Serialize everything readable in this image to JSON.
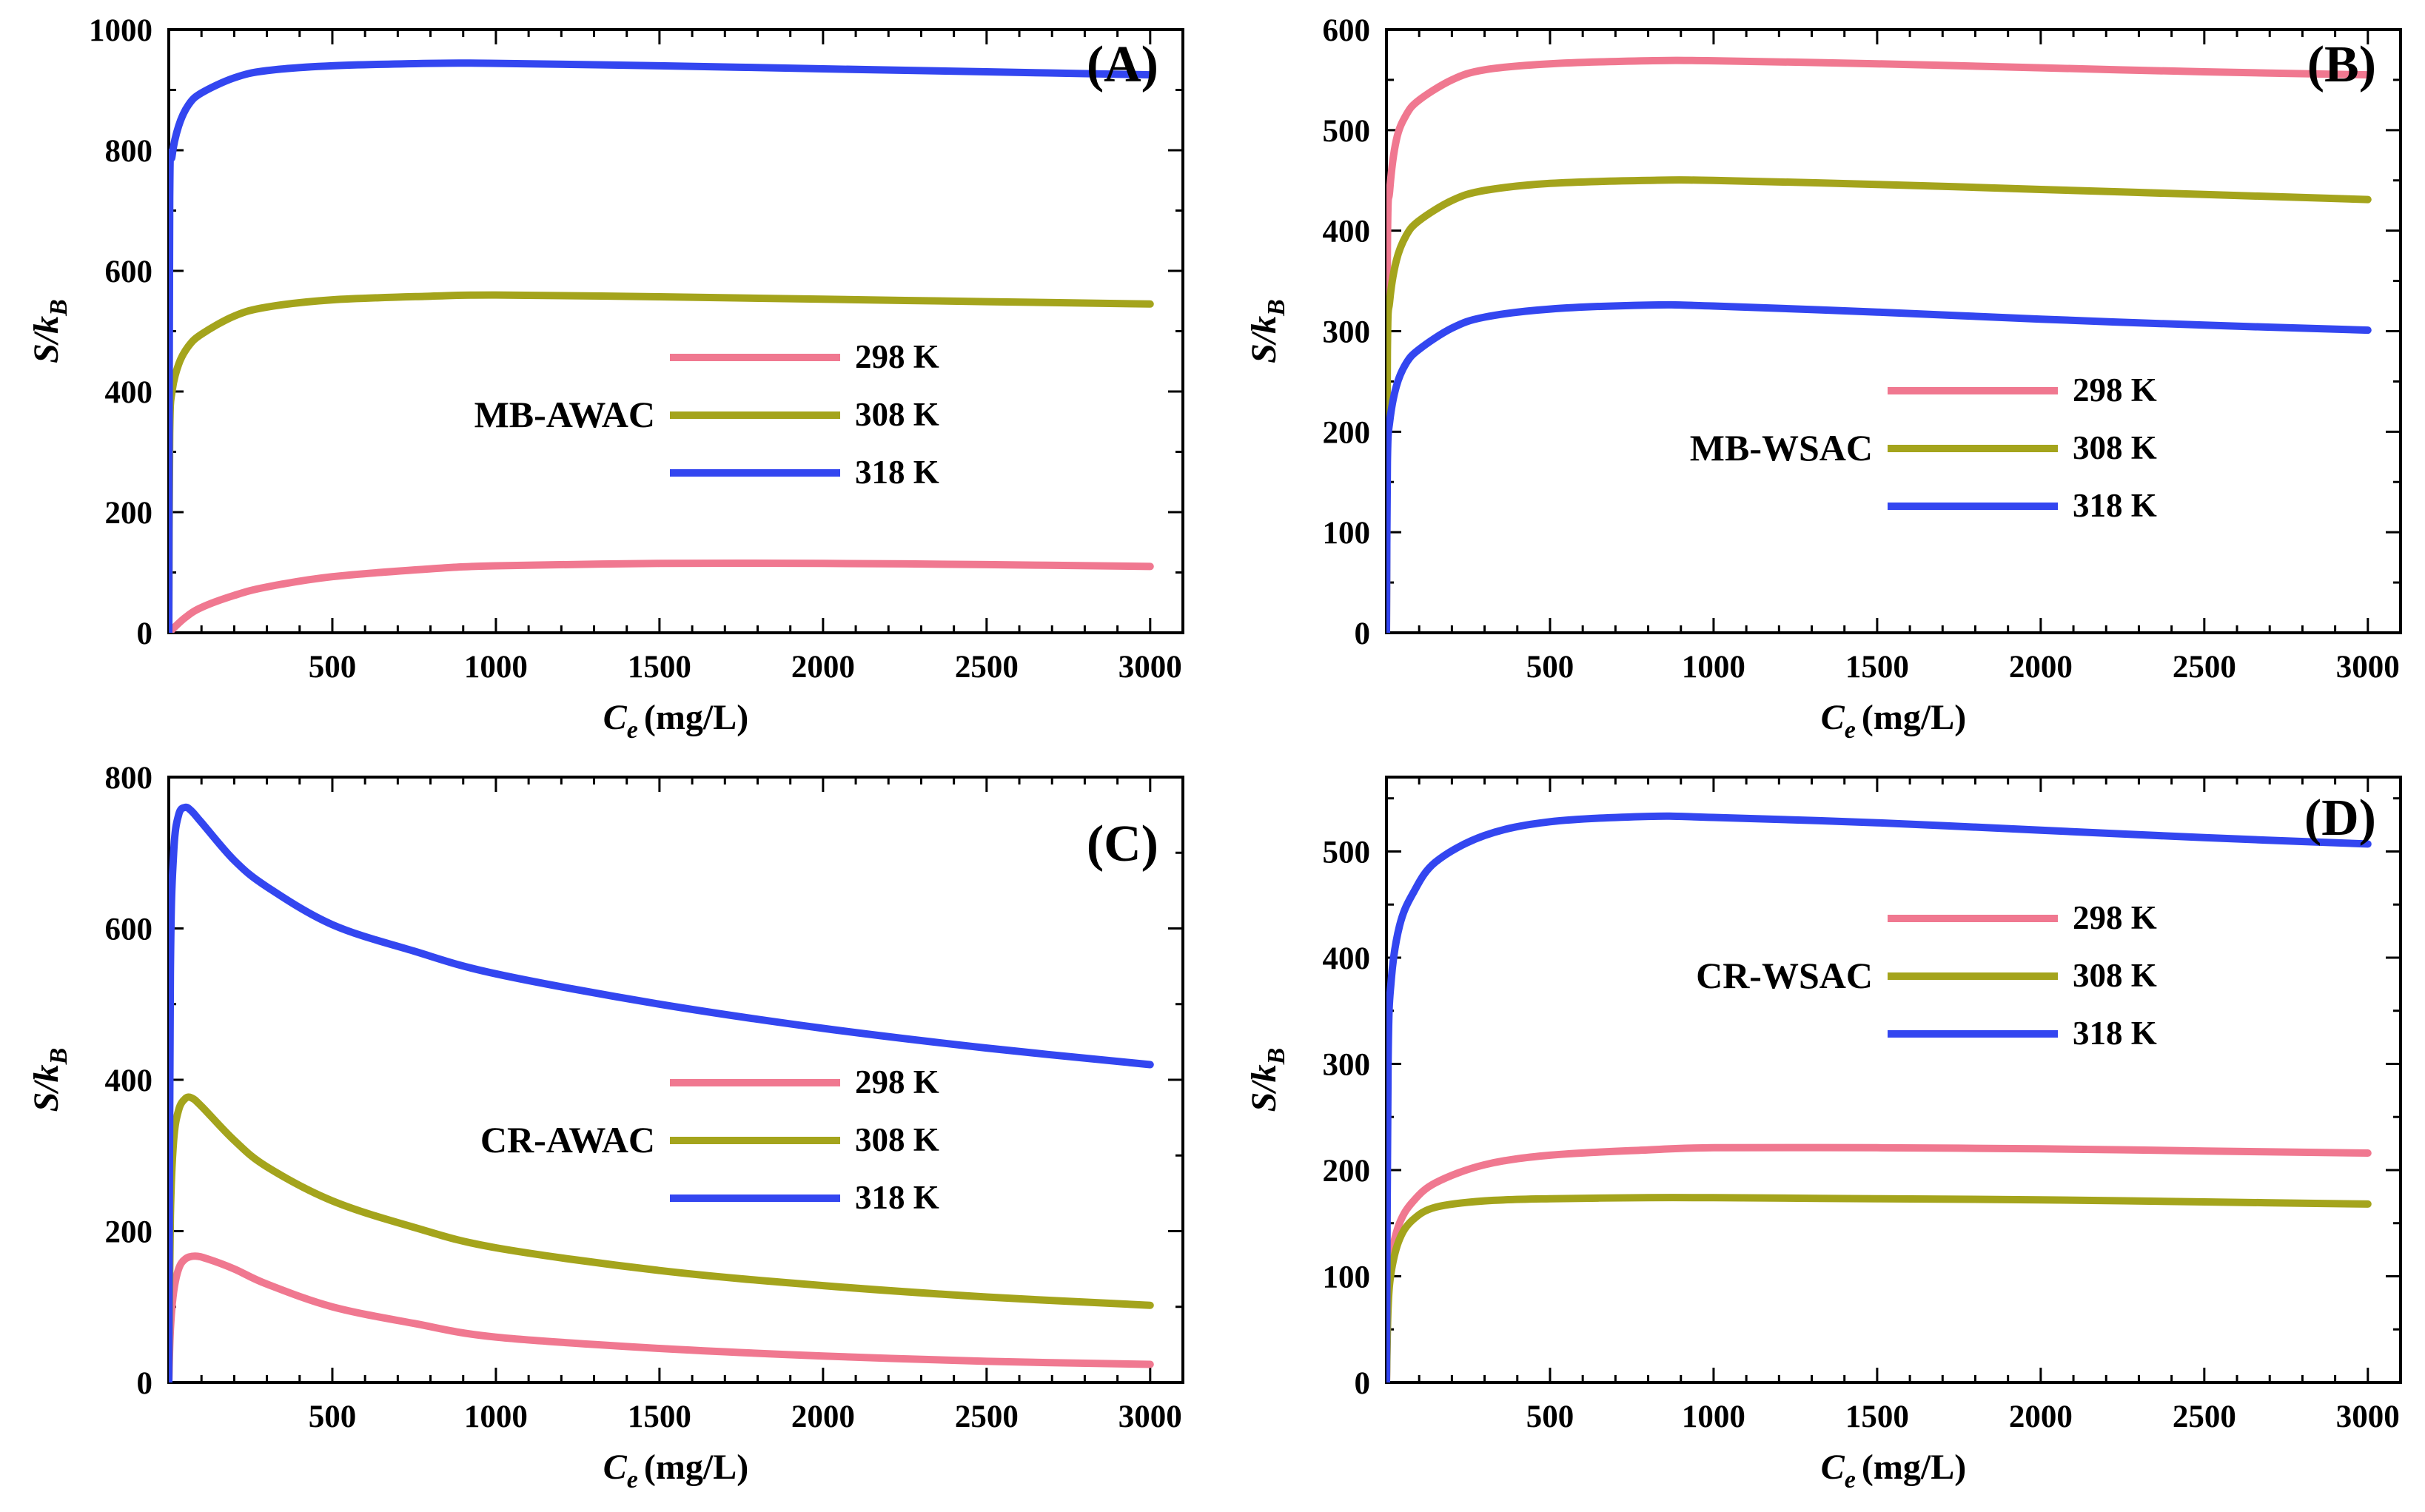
{
  "figure": {
    "x_axis_label": "C",
    "x_axis_subscript": "e",
    "x_axis_unit": "(mg/L)",
    "y_axis_label": "S/k",
    "y_axis_subscript": "B"
  },
  "chart_data": [
    {
      "panel": "(A)",
      "type": "line",
      "sample": "MB-AWAC",
      "xlabel": "Ce (mg/L)",
      "ylabel": "S/kB",
      "xlim": [
        0,
        3100
      ],
      "ylim": [
        0,
        1000
      ],
      "xticks": [
        500,
        1000,
        1500,
        2000,
        2500,
        3000
      ],
      "yticks": [
        0,
        200,
        400,
        600,
        800,
        1000
      ],
      "legend": [
        "298 K",
        "308 K",
        "318  K"
      ],
      "series": [
        {
          "name": "298 K",
          "color": "#f07890",
          "points": [
            [
              0,
              0
            ],
            [
              50,
              25
            ],
            [
              100,
              42
            ],
            [
              200,
              62
            ],
            [
              300,
              76
            ],
            [
              500,
              93
            ],
            [
              800,
              106
            ],
            [
              1000,
              111
            ],
            [
              1500,
              115
            ],
            [
              2000,
              115
            ],
            [
              2500,
              113
            ],
            [
              3000,
              110
            ]
          ]
        },
        {
          "name": "308 K",
          "color": "#a4a41c",
          "points": [
            [
              0,
              0
            ],
            [
              3,
              330
            ],
            [
              10,
              400
            ],
            [
              30,
              445
            ],
            [
              60,
              475
            ],
            [
              100,
              495
            ],
            [
              200,
              525
            ],
            [
              300,
              540
            ],
            [
              500,
              552
            ],
            [
              800,
              558
            ],
            [
              1000,
              560
            ],
            [
              1500,
              557
            ],
            [
              2000,
              553
            ],
            [
              2500,
              549
            ],
            [
              3000,
              545
            ]
          ]
        },
        {
          "name": "318 K",
          "color": "#3346f0",
          "points": [
            [
              0,
              0
            ],
            [
              3,
              720
            ],
            [
              10,
              790
            ],
            [
              30,
              840
            ],
            [
              60,
              875
            ],
            [
              100,
              895
            ],
            [
              200,
              920
            ],
            [
              300,
              932
            ],
            [
              500,
              940
            ],
            [
              800,
              944
            ],
            [
              1000,
              944
            ],
            [
              1500,
              940
            ],
            [
              2000,
              935
            ],
            [
              2500,
              930
            ],
            [
              3000,
              925
            ]
          ]
        }
      ]
    },
    {
      "panel": "(B)",
      "type": "line",
      "sample": "MB-WSAC",
      "xlabel": "Ce (mg/L)",
      "ylabel": "S/kB",
      "xlim": [
        0,
        3100
      ],
      "ylim": [
        0,
        600
      ],
      "xticks": [
        500,
        1000,
        1500,
        2000,
        2500,
        3000
      ],
      "yticks": [
        0,
        100,
        200,
        300,
        400,
        500,
        600
      ],
      "legend": [
        "298 K",
        "308 K",
        "318  K"
      ],
      "series": [
        {
          "name": "298 K",
          "color": "#f07890",
          "points": [
            [
              0,
              0
            ],
            [
              3,
              380
            ],
            [
              10,
              440
            ],
            [
              30,
              490
            ],
            [
              60,
              515
            ],
            [
              100,
              530
            ],
            [
              200,
              550
            ],
            [
              300,
              560
            ],
            [
              500,
              566
            ],
            [
              800,
              569
            ],
            [
              1000,
              569
            ],
            [
              1500,
              566
            ],
            [
              2000,
              562
            ],
            [
              2500,
              558
            ],
            [
              3000,
              555
            ]
          ]
        },
        {
          "name": "308 K",
          "color": "#a4a41c",
          "points": [
            [
              0,
              0
            ],
            [
              3,
              280
            ],
            [
              10,
              330
            ],
            [
              30,
              370
            ],
            [
              60,
              395
            ],
            [
              100,
              410
            ],
            [
              200,
              430
            ],
            [
              300,
              440
            ],
            [
              500,
              447
            ],
            [
              800,
              450
            ],
            [
              1000,
              450
            ],
            [
              1500,
              446
            ],
            [
              2000,
              441
            ],
            [
              2500,
              436
            ],
            [
              3000,
              431
            ]
          ]
        },
        {
          "name": "318 K",
          "color": "#3346f0",
          "points": [
            [
              0,
              0
            ],
            [
              3,
              170
            ],
            [
              10,
              210
            ],
            [
              30,
              245
            ],
            [
              60,
              268
            ],
            [
              100,
              282
            ],
            [
              200,
              303
            ],
            [
              300,
              314
            ],
            [
              500,
              322
            ],
            [
              800,
              326
            ],
            [
              1000,
              325
            ],
            [
              1500,
              319
            ],
            [
              2000,
              312
            ],
            [
              2500,
              306
            ],
            [
              3000,
              301
            ]
          ]
        }
      ]
    },
    {
      "panel": "(C)",
      "type": "line",
      "sample": "CR-AWAC",
      "xlabel": "Ce (mg/L)",
      "ylabel": "S/kB",
      "xlim": [
        0,
        3100
      ],
      "ylim": [
        0,
        800
      ],
      "xticks": [
        500,
        1000,
        1500,
        2000,
        2500,
        3000
      ],
      "yticks": [
        0,
        200,
        400,
        600,
        800
      ],
      "legend": [
        "298 K",
        "308 K",
        "318  K"
      ],
      "series": [
        {
          "name": "298 K",
          "color": "#f07890",
          "points": [
            [
              0,
              0
            ],
            [
              5,
              70
            ],
            [
              15,
              120
            ],
            [
              30,
              150
            ],
            [
              50,
              163
            ],
            [
              80,
              167
            ],
            [
              120,
              163
            ],
            [
              200,
              150
            ],
            [
              300,
              130
            ],
            [
              500,
              100
            ],
            [
              750,
              78
            ],
            [
              1000,
              60
            ],
            [
              1500,
              45
            ],
            [
              2000,
              35
            ],
            [
              2500,
              28
            ],
            [
              3000,
              24
            ]
          ]
        },
        {
          "name": "308 K",
          "color": "#a4a41c",
          "points": [
            [
              0,
              0
            ],
            [
              5,
              220
            ],
            [
              15,
              320
            ],
            [
              30,
              360
            ],
            [
              50,
              375
            ],
            [
              70,
              376
            ],
            [
              100,
              365
            ],
            [
              200,
              320
            ],
            [
              300,
              285
            ],
            [
              500,
              240
            ],
            [
              750,
              205
            ],
            [
              1000,
              178
            ],
            [
              1500,
              148
            ],
            [
              2000,
              128
            ],
            [
              2500,
              113
            ],
            [
              3000,
              102
            ]
          ]
        },
        {
          "name": "318 K",
          "color": "#3346f0",
          "points": [
            [
              0,
              0
            ],
            [
              5,
              540
            ],
            [
              15,
              700
            ],
            [
              30,
              750
            ],
            [
              50,
              760
            ],
            [
              70,
              755
            ],
            [
              100,
              740
            ],
            [
              200,
              690
            ],
            [
              300,
              655
            ],
            [
              500,
              605
            ],
            [
              750,
              570
            ],
            [
              1000,
              540
            ],
            [
              1500,
              500
            ],
            [
              2000,
              468
            ],
            [
              2500,
              442
            ],
            [
              3000,
              420
            ]
          ]
        }
      ]
    },
    {
      "panel": "(D)",
      "type": "line",
      "sample": "CR-WSAC",
      "xlabel": "Ce (mg/L)",
      "ylabel": "S/kB",
      "xlim": [
        0,
        3100
      ],
      "ylim": [
        0,
        570
      ],
      "xticks": [
        500,
        1000,
        1500,
        2000,
        2500,
        3000
      ],
      "yticks": [
        0,
        100,
        200,
        300,
        400,
        500
      ],
      "legend": [
        "298 K",
        "308 K",
        "318  K"
      ],
      "series": [
        {
          "name": "298 K",
          "color": "#f07890",
          "points": [
            [
              0,
              0
            ],
            [
              5,
              90
            ],
            [
              15,
              120
            ],
            [
              40,
              150
            ],
            [
              80,
              170
            ],
            [
              150,
              188
            ],
            [
              300,
              205
            ],
            [
              500,
              214
            ],
            [
              800,
              219
            ],
            [
              1000,
              221
            ],
            [
              1500,
              221
            ],
            [
              2000,
              220
            ],
            [
              2500,
              218
            ],
            [
              3000,
              216
            ]
          ]
        },
        {
          "name": "308 K",
          "color": "#a4a41c",
          "points": [
            [
              0,
              0
            ],
            [
              5,
              70
            ],
            [
              15,
              105
            ],
            [
              40,
              135
            ],
            [
              80,
              153
            ],
            [
              150,
              165
            ],
            [
              300,
              171
            ],
            [
              500,
              173
            ],
            [
              800,
              174
            ],
            [
              1000,
              174
            ],
            [
              1500,
              173
            ],
            [
              2000,
              172
            ],
            [
              2500,
              170
            ],
            [
              3000,
              168
            ]
          ]
        },
        {
          "name": "318 K",
          "color": "#3346f0",
          "points": [
            [
              0,
              0
            ],
            [
              5,
              300
            ],
            [
              15,
              380
            ],
            [
              40,
              430
            ],
            [
              80,
              460
            ],
            [
              150,
              490
            ],
            [
              300,
              515
            ],
            [
              500,
              528
            ],
            [
              800,
              533
            ],
            [
              1000,
              532
            ],
            [
              1500,
              527
            ],
            [
              2000,
              520
            ],
            [
              2500,
              513
            ],
            [
              3000,
              507
            ]
          ]
        }
      ]
    }
  ]
}
